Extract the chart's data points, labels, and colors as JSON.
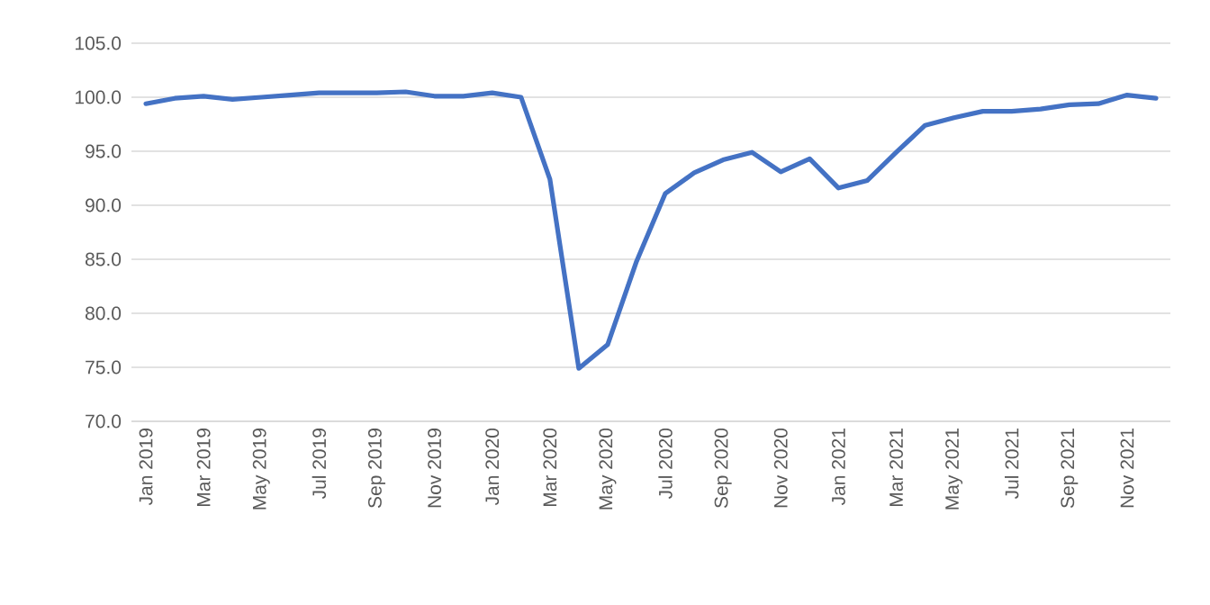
{
  "chart_data": {
    "type": "line",
    "categories": [
      "Jan 2019",
      null,
      "Mar 2019",
      null,
      "May 2019",
      null,
      "Jul 2019",
      null,
      "Sep 2019",
      null,
      "Nov 2019",
      null,
      "Jan 2020",
      null,
      "Mar 2020",
      null,
      "May 2020",
      null,
      "Jul 2020",
      null,
      "Sep 2020",
      null,
      "Nov 2020",
      null,
      "Jan 2021",
      null,
      "Mar 2021",
      null,
      "May 2021",
      null,
      "Jul 2021",
      null,
      "Sep 2021",
      null,
      "Nov 2021",
      null
    ],
    "values": [
      99.4,
      99.9,
      100.1,
      99.8,
      100.0,
      100.2,
      100.4,
      100.4,
      100.4,
      100.5,
      100.1,
      100.1,
      100.4,
      100.0,
      92.4,
      74.9,
      77.1,
      84.8,
      91.1,
      93.0,
      94.2,
      94.9,
      93.1,
      94.3,
      91.6,
      92.3,
      94.9,
      97.4,
      98.1,
      98.7,
      98.7,
      98.9,
      99.3,
      99.4,
      100.2,
      99.9
    ],
    "color": "#4472c4",
    "ylim": [
      70,
      105
    ],
    "yticks": [
      {
        "value": 70,
        "label": "70.0"
      },
      {
        "value": 75,
        "label": "75.0"
      },
      {
        "value": 80,
        "label": "80.0"
      },
      {
        "value": 85,
        "label": "85.0"
      },
      {
        "value": 90,
        "label": "90.0"
      },
      {
        "value": 95,
        "label": "95.0"
      },
      {
        "value": 100,
        "label": "100.0"
      },
      {
        "value": 105,
        "label": "105.0"
      }
    ],
    "grid": "y"
  }
}
